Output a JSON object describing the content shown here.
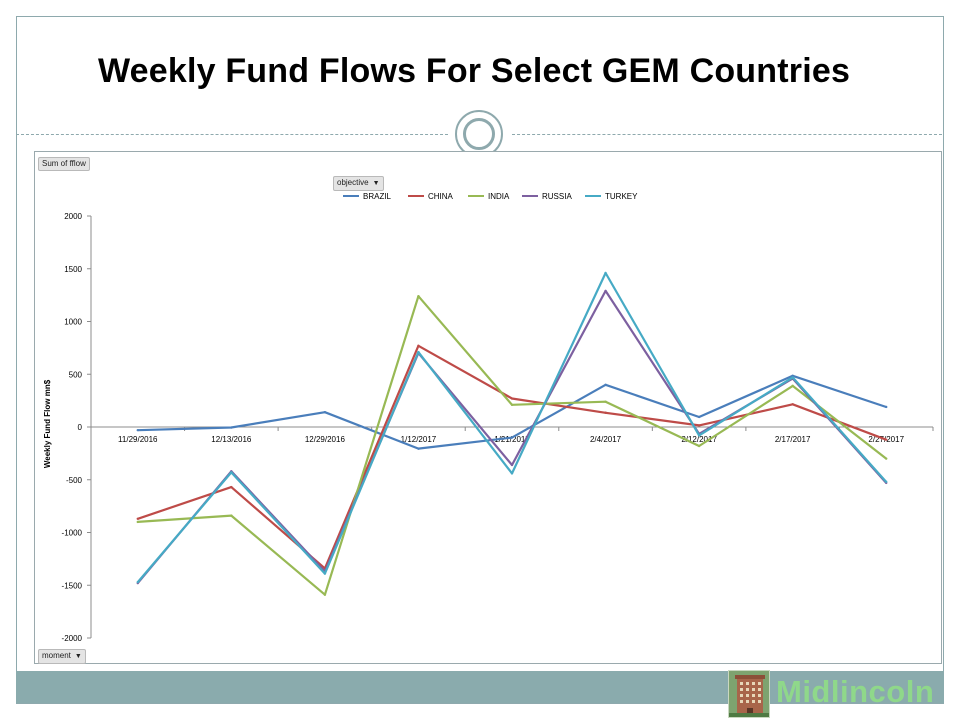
{
  "slide": {
    "title": "Weekly Fund Flows For Select GEM Countries",
    "logo_text": "Midlincoln"
  },
  "pivot": {
    "data_field": "Sum of fflow",
    "legend_field": "objective",
    "axis_field": "moment"
  },
  "colors": {
    "accent": "#8ea9ad",
    "bottom_bar": "#8aabad",
    "logo_text": "#8fd88a"
  },
  "chart_data": {
    "type": "line",
    "title": "",
    "xlabel": "",
    "ylabel": "Weekly Fund Flow mn$",
    "categories": [
      "11/29/2016",
      "12/13/2016",
      "12/29/2016",
      "1/12/2017",
      "1/21/2017",
      "2/4/2017",
      "2/12/2017",
      "2/17/2017",
      "2/27/2017"
    ],
    "ylim": [
      -2000,
      2000
    ],
    "yticks": [
      2000,
      1500,
      1000,
      500,
      0,
      -500,
      -1000,
      -1500,
      -2000
    ],
    "grid": false,
    "legend_position": "top",
    "series": [
      {
        "name": "BRAZIL",
        "color": "#4a7ebb",
        "values": [
          -30,
          -5,
          140,
          -205,
          -100,
          400,
          95,
          485,
          190
        ]
      },
      {
        "name": "CHINA",
        "color": "#be4b48",
        "values": [
          -870,
          -570,
          -1340,
          770,
          270,
          135,
          15,
          215,
          -120
        ]
      },
      {
        "name": "INDIA",
        "color": "#98b954",
        "values": [
          -900,
          -840,
          -1590,
          1240,
          210,
          240,
          -180,
          390,
          -300
        ]
      },
      {
        "name": "RUSSIA",
        "color": "#7d60a0",
        "values": [
          -1480,
          -420,
          -1370,
          700,
          -360,
          1290,
          -65,
          460,
          -530
        ]
      },
      {
        "name": "TURKEY",
        "color": "#46aac5",
        "values": [
          -1470,
          -430,
          -1390,
          710,
          -440,
          1460,
          -80,
          470,
          -520
        ]
      }
    ]
  }
}
